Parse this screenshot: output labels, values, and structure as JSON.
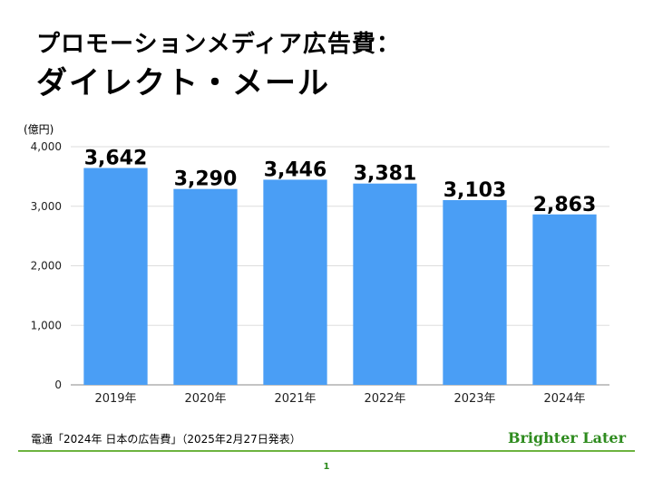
{
  "header": {
    "title_line1": "プロモーションメディア広告費：",
    "title_line2": "ダイレクト・メール"
  },
  "chart_data": {
    "type": "bar",
    "ylabel": "(億円)",
    "categories": [
      "2019年",
      "2020年",
      "2021年",
      "2022年",
      "2023年",
      "2024年"
    ],
    "values": [
      3642,
      3290,
      3446,
      3381,
      3103,
      2863
    ],
    "data_labels": [
      "3,642",
      "3,290",
      "3,446",
      "3,381",
      "3,103",
      "2,863"
    ],
    "yticks": [
      0,
      1000,
      2000,
      3000,
      4000
    ],
    "ytick_labels": [
      "0",
      "1,000",
      "2,000",
      "3,000",
      "4,000"
    ],
    "ylim": [
      0,
      4000
    ],
    "grid": true,
    "bar_color": "#4a9ef5"
  },
  "footer": {
    "source": "電通「2024年 日本の広告費」（2025年2月27日発表）",
    "logo": "Brighter Later",
    "page_number": "1"
  }
}
